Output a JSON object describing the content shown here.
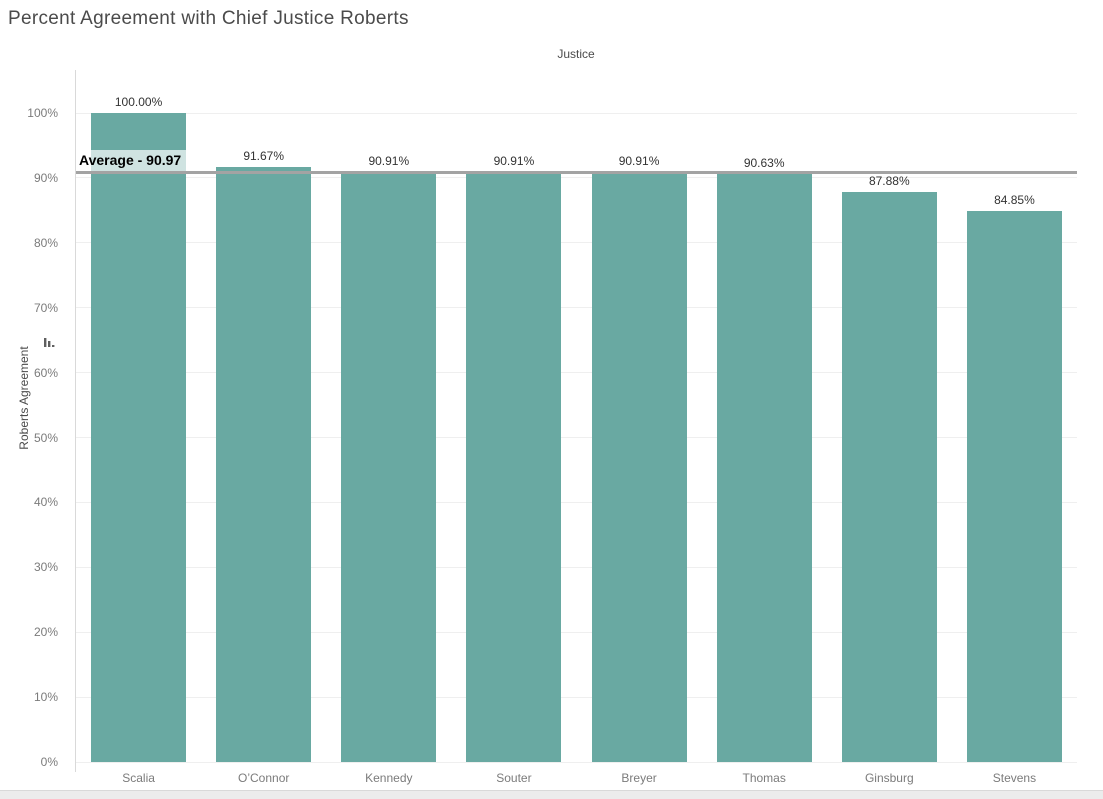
{
  "chart_data": {
    "type": "bar",
    "title": "Percent Agreement with Chief Justice Roberts",
    "column_header": "Justice",
    "xlabel": "Justice",
    "ylabel": "Roberts Agreement",
    "categories": [
      "Scalia",
      "O’Connor",
      "Kennedy",
      "Souter",
      "Breyer",
      "Thomas",
      "Ginsburg",
      "Stevens"
    ],
    "values": [
      100.0,
      91.67,
      90.91,
      90.91,
      90.91,
      90.63,
      87.88,
      84.85
    ],
    "value_labels": [
      "100.00%",
      "91.67%",
      "90.91%",
      "90.91%",
      "90.91%",
      "90.63%",
      "87.88%",
      "84.85%"
    ],
    "ylim": [
      0,
      100
    ],
    "y_ticks": [
      {
        "value": 0,
        "label": "0%"
      },
      {
        "value": 10,
        "label": "10%"
      },
      {
        "value": 20,
        "label": "20%"
      },
      {
        "value": 30,
        "label": "30%"
      },
      {
        "value": 40,
        "label": "40%"
      },
      {
        "value": 50,
        "label": "50%"
      },
      {
        "value": 60,
        "label": "60%"
      },
      {
        "value": 70,
        "label": "70%"
      },
      {
        "value": 80,
        "label": "80%"
      },
      {
        "value": 90,
        "label": "90%"
      },
      {
        "value": 100,
        "label": "100%"
      }
    ],
    "reference_line": {
      "value": 90.97,
      "label": "Average - 90.97"
    },
    "grid": true,
    "legend": "none",
    "colors": {
      "bar": "#69a9a2",
      "grid": "#efefef",
      "axis_line": "#d9d9d9",
      "tick_text": "#7b7b7b",
      "value_text": "#333333",
      "title_text": "#4b4b4b",
      "reference_line": "#a3a3a3"
    }
  },
  "icons": {
    "sort_icon": "sort-descending-bars"
  }
}
